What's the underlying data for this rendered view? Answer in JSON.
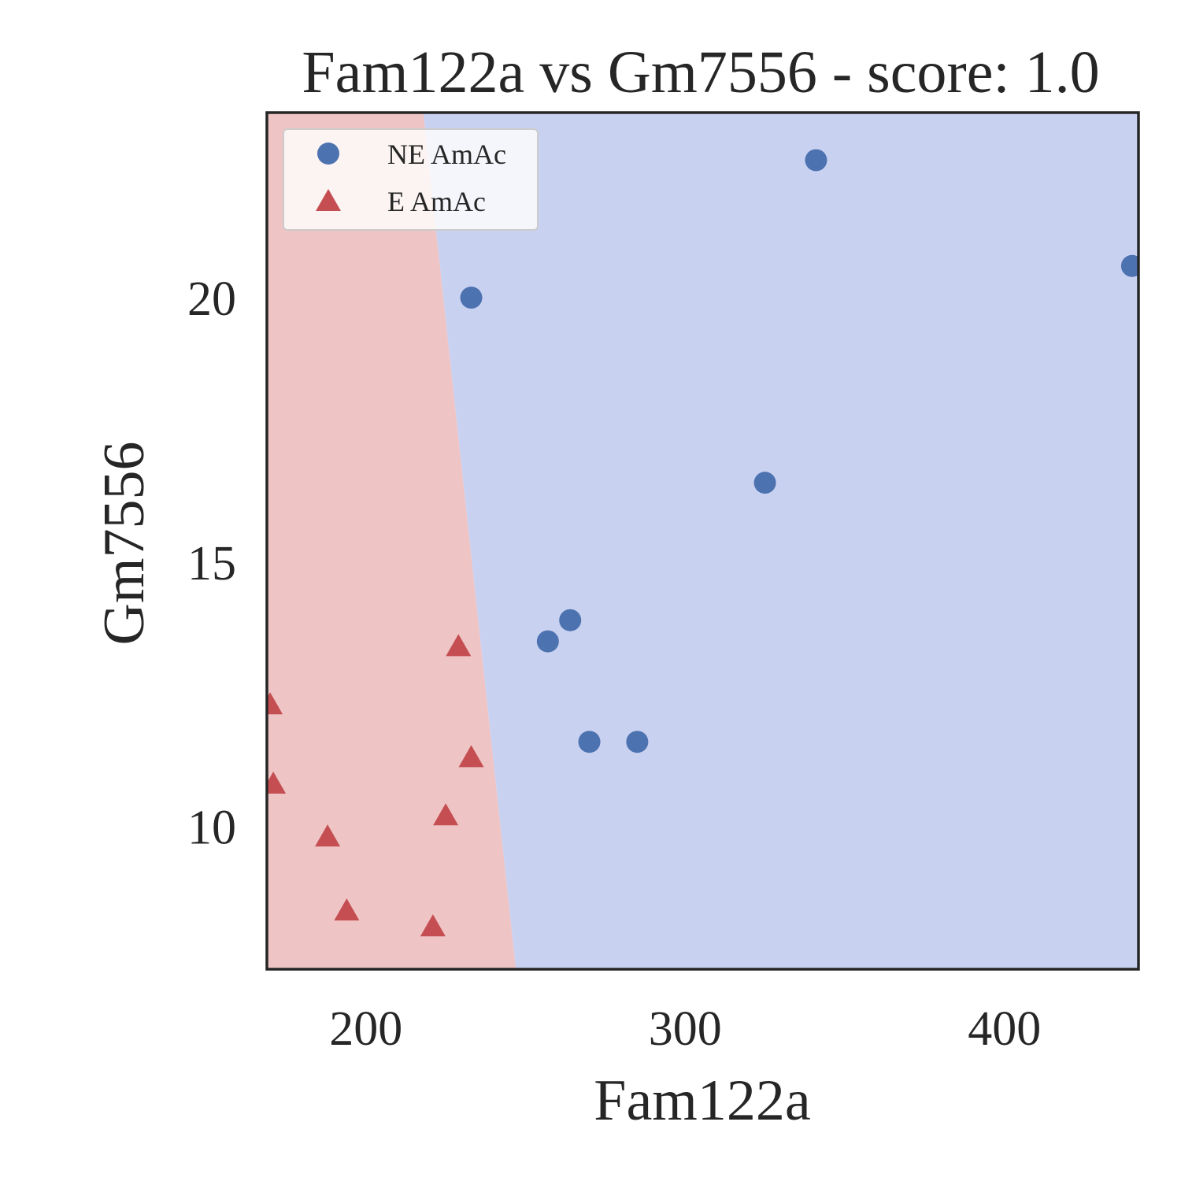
{
  "chart_data": {
    "type": "scatter",
    "title": "Fam122a vs Gm7556 - score: 1.0",
    "xlabel": "Fam122a",
    "ylabel": "Gm7556",
    "xlim": [
      169,
      442
    ],
    "ylim": [
      7.3,
      23.5
    ],
    "xticks": [
      200,
      300,
      400
    ],
    "yticks": [
      10,
      15,
      20
    ],
    "grid": false,
    "legend_position": "top-left",
    "series": [
      {
        "name": "NE AmAc",
        "marker": "circle",
        "color": "#4c72b0",
        "points": [
          {
            "x": 233,
            "y": 20.0
          },
          {
            "x": 341,
            "y": 22.6
          },
          {
            "x": 440,
            "y": 20.6
          },
          {
            "x": 325,
            "y": 16.5
          },
          {
            "x": 257,
            "y": 13.5
          },
          {
            "x": 264,
            "y": 13.9
          },
          {
            "x": 270,
            "y": 11.6
          },
          {
            "x": 285,
            "y": 11.6
          }
        ]
      },
      {
        "name": "E AmAc",
        "marker": "triangle",
        "color": "#c44e52",
        "points": [
          {
            "x": 229,
            "y": 13.4
          },
          {
            "x": 170,
            "y": 12.3
          },
          {
            "x": 171,
            "y": 10.8
          },
          {
            "x": 233,
            "y": 11.3
          },
          {
            "x": 188,
            "y": 9.8
          },
          {
            "x": 225,
            "y": 10.2
          },
          {
            "x": 194,
            "y": 8.4
          },
          {
            "x": 221,
            "y": 8.1
          }
        ]
      }
    ],
    "decision_regions": [
      {
        "class": "E AmAc",
        "color": "#efc4c4"
      },
      {
        "class": "NE AmAc",
        "color": "#c9d1f1"
      }
    ],
    "decision_boundary": [
      {
        "x": 218,
        "y": 23.5
      },
      {
        "x": 247,
        "y": 7.3
      }
    ]
  }
}
